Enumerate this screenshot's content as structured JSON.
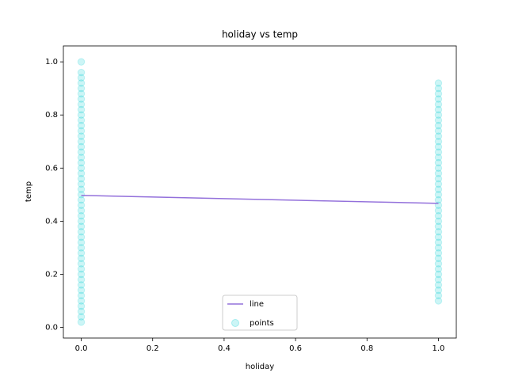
{
  "chart_data": {
    "type": "line_scatter",
    "title": "holiday vs temp",
    "x_label": "holiday",
    "y_label": "temp",
    "xlim": [
      -0.05,
      1.05
    ],
    "ylim": [
      -0.04,
      1.06
    ],
    "xticks": [
      {
        "value": 0,
        "label": "0.0"
      },
      0.2,
      0.4,
      0.6,
      0.8,
      {
        "value": 1,
        "label": "1.0"
      }
    ],
    "yticks": [
      {
        "value": 0,
        "label": "0.0"
      },
      0.2,
      0.4,
      0.6,
      0.8,
      {
        "value": 1,
        "label": "1.0"
      }
    ],
    "legend": "lower center",
    "series": [
      {
        "name": "line",
        "kind": "line",
        "color": "#9370db",
        "x": [
          0,
          1
        ],
        "y": [
          0.497,
          0.467
        ]
      },
      {
        "name": "points",
        "kind": "scatter",
        "color": "#00ced1",
        "x": [
          0,
          0,
          0,
          0,
          0,
          0,
          0,
          0,
          0,
          0,
          0,
          0,
          0,
          0,
          0,
          0,
          0,
          0,
          0,
          0,
          0,
          0,
          0,
          0,
          0,
          0,
          0,
          0,
          0,
          0,
          0,
          0,
          0,
          0,
          0,
          0,
          0,
          0,
          0,
          0,
          0,
          0,
          0,
          0,
          0,
          0,
          0,
          0,
          0,
          1,
          1,
          1,
          1,
          1,
          1,
          1,
          1,
          1,
          1,
          1,
          1,
          1,
          1,
          1,
          1,
          1,
          1,
          1,
          1,
          1,
          1,
          1,
          1,
          1,
          1,
          1,
          1,
          1,
          1,
          1,
          1,
          1,
          1,
          1,
          1,
          1,
          1,
          1,
          1,
          1,
          1
        ],
        "y": [
          0.02,
          0.04,
          0.06,
          0.08,
          0.1,
          0.12,
          0.14,
          0.16,
          0.18,
          0.2,
          0.22,
          0.24,
          0.26,
          0.28,
          0.3,
          0.32,
          0.34,
          0.36,
          0.38,
          0.4,
          0.42,
          0.44,
          0.46,
          0.48,
          0.5,
          0.52,
          0.54,
          0.56,
          0.58,
          0.6,
          0.62,
          0.64,
          0.66,
          0.68,
          0.7,
          0.72,
          0.74,
          0.76,
          0.78,
          0.8,
          0.82,
          0.84,
          0.86,
          0.88,
          0.9,
          0.92,
          0.94,
          0.96,
          1.0,
          0.1,
          0.12,
          0.14,
          0.16,
          0.18,
          0.2,
          0.22,
          0.24,
          0.26,
          0.28,
          0.3,
          0.32,
          0.34,
          0.36,
          0.38,
          0.4,
          0.42,
          0.44,
          0.46,
          0.48,
          0.5,
          0.52,
          0.54,
          0.56,
          0.58,
          0.6,
          0.62,
          0.64,
          0.66,
          0.68,
          0.7,
          0.72,
          0.74,
          0.76,
          0.78,
          0.8,
          0.82,
          0.84,
          0.86,
          0.88,
          0.9,
          0.92
        ]
      }
    ]
  }
}
